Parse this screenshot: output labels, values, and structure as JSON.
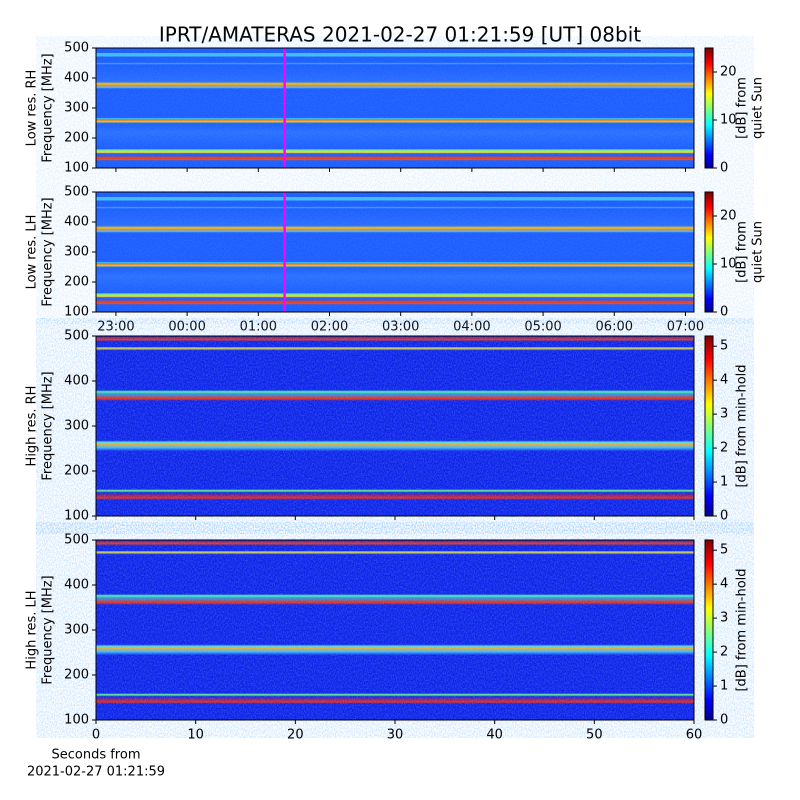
{
  "title": "IPRT/AMATERAS 2021-02-27 01:21:59 [UT]   08bit",
  "chart_data": [
    {
      "type": "heatmap",
      "ylabel": [
        "Low res. RH",
        "Frequency [MHz]"
      ],
      "ylim": [
        100,
        500
      ],
      "yticks": [
        100,
        200,
        300,
        400,
        500
      ],
      "xlim": [
        22.72,
        31.12
      ],
      "marker_x": 25.37,
      "marker_color": "#ff00ff",
      "colorbar": {
        "label": [
          "[dB] from",
          "quiet Sun"
        ],
        "lim": [
          0,
          25
        ],
        "ticks": [
          0,
          10,
          20
        ]
      }
    },
    {
      "type": "heatmap",
      "ylabel": [
        "Low res. LH",
        "Frequency [MHz]"
      ],
      "ylim": [
        100,
        500
      ],
      "yticks": [
        100,
        200,
        300,
        400,
        500
      ],
      "xlim": [
        22.72,
        31.12
      ],
      "marker_x": 25.37,
      "marker_color": "#ff00ff",
      "xticks": [
        {
          "value": 23,
          "label": "23:00"
        },
        {
          "value": 24,
          "label": "00:00"
        },
        {
          "value": 25,
          "label": "01:00"
        },
        {
          "value": 26,
          "label": "02:00"
        },
        {
          "value": 27,
          "label": "03:00"
        },
        {
          "value": 28,
          "label": "04:00"
        },
        {
          "value": 29,
          "label": "05:00"
        },
        {
          "value": 30,
          "label": "06:00"
        },
        {
          "value": 31,
          "label": "07:00"
        }
      ],
      "colorbar": {
        "label": [
          "[dB] from",
          "quiet Sun"
        ],
        "lim": [
          0,
          25
        ],
        "ticks": [
          0,
          10,
          20
        ]
      }
    },
    {
      "type": "heatmap",
      "ylabel": [
        "High res. RH",
        "Frequency [MHz]"
      ],
      "ylim": [
        100,
        500
      ],
      "yticks": [
        100,
        200,
        300,
        400,
        500
      ],
      "xlim": [
        0,
        60
      ],
      "colorbar": {
        "label": [
          "[dB] from min-hold"
        ],
        "lim": [
          0,
          5.3
        ],
        "ticks": [
          0,
          1,
          2,
          3,
          4,
          5
        ]
      }
    },
    {
      "type": "heatmap",
      "ylabel": [
        "High res. LH",
        "Frequency [MHz]"
      ],
      "ylim": [
        100,
        500
      ],
      "yticks": [
        100,
        200,
        300,
        400,
        500
      ],
      "xlim": [
        0,
        60
      ],
      "xticks": [
        0,
        10,
        20,
        30,
        40,
        50,
        60
      ],
      "xlabel": [
        "Seconds from",
        "2021-02-27 01:21:59"
      ],
      "colorbar": {
        "label": [
          "[dB] from min-hold"
        ],
        "lim": [
          0,
          5.3
        ],
        "ticks": [
          0,
          1,
          2,
          3,
          4,
          5
        ]
      }
    }
  ]
}
